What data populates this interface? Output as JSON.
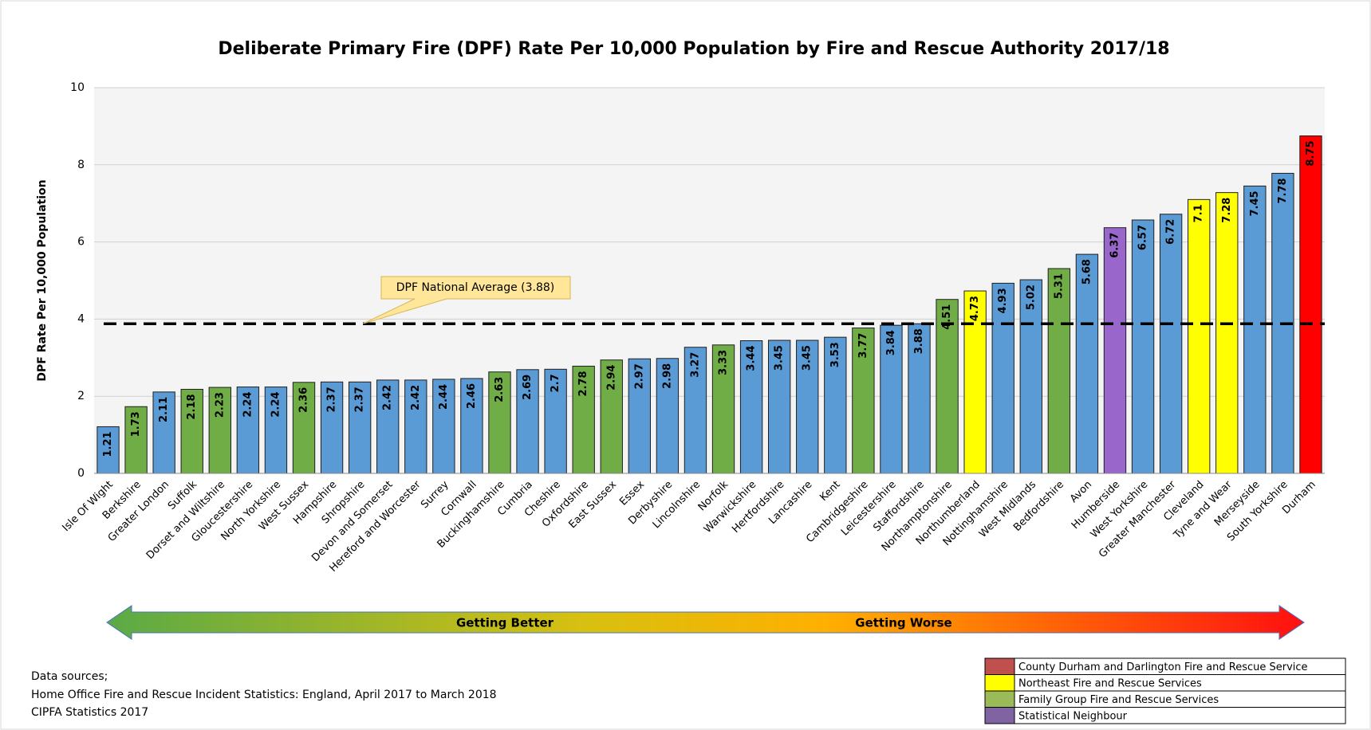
{
  "chart_data": {
    "type": "bar",
    "title": "Deliberate Primary Fire (DPF) Rate Per 10,000 Population by Fire and Rescue Authority 2017/18",
    "y_label": "DPF Rate Per 10,000 Population",
    "categories": [
      "Isle Of Wight",
      "Berkshire",
      "Greater London",
      "Suffolk",
      "Dorset and Wiltshire",
      "Gloucestershire",
      "North Yorkshire",
      "West Sussex",
      "Hampshire",
      "Shropshire",
      "Devon and Somerset",
      "Hereford and Worcester",
      "Surrey",
      "Cornwall",
      "Buckinghamshire",
      "Cumbria",
      "Cheshire",
      "Oxfordshire",
      "East Sussex",
      "Essex",
      "Derbyshire",
      "Lincolnshire",
      "Norfolk",
      "Warwickshire",
      "Hertfordshire",
      "Lancashire",
      "Kent",
      "Cambridgeshire",
      "Leicestershire",
      "Staffordshire",
      "Northamptonshire",
      "Northumberland",
      "Nottinghamshire",
      "West Midlands",
      "Bedfordshire",
      "Avon",
      "Humberside",
      "West Yorkshire",
      "Greater Manchester",
      "Cleveland",
      "Tyne and Wear",
      "Merseyside",
      "South Yorkshire",
      "Durham"
    ],
    "values": [
      1.21,
      1.73,
      2.11,
      2.18,
      2.23,
      2.24,
      2.24,
      2.36,
      2.37,
      2.37,
      2.42,
      2.42,
      2.44,
      2.46,
      2.63,
      2.69,
      2.7,
      2.78,
      2.94,
      2.97,
      2.98,
      3.27,
      3.33,
      3.44,
      3.45,
      3.45,
      3.53,
      3.77,
      3.84,
      3.88,
      4.51,
      4.73,
      4.93,
      5.02,
      5.31,
      5.68,
      6.37,
      6.57,
      6.72,
      7.1,
      7.28,
      7.45,
      7.78,
      8.75
    ],
    "colors": [
      "#5b9bd5",
      "#70ad47",
      "#5b9bd5",
      "#70ad47",
      "#70ad47",
      "#5b9bd5",
      "#5b9bd5",
      "#70ad47",
      "#5b9bd5",
      "#5b9bd5",
      "#5b9bd5",
      "#5b9bd5",
      "#5b9bd5",
      "#5b9bd5",
      "#70ad47",
      "#5b9bd5",
      "#5b9bd5",
      "#70ad47",
      "#70ad47",
      "#5b9bd5",
      "#5b9bd5",
      "#5b9bd5",
      "#70ad47",
      "#5b9bd5",
      "#5b9bd5",
      "#5b9bd5",
      "#5b9bd5",
      "#70ad47",
      "#5b9bd5",
      "#5b9bd5",
      "#70ad47",
      "#ffff00",
      "#5b9bd5",
      "#5b9bd5",
      "#70ad47",
      "#5b9bd5",
      "#9966cc",
      "#5b9bd5",
      "#5b9bd5",
      "#ffff00",
      "#ffff00",
      "#5b9bd5",
      "#5b9bd5",
      "#ff0000"
    ],
    "ylim": [
      0,
      10
    ],
    "yticks": [
      0,
      2,
      4,
      6,
      8,
      10
    ],
    "grid": true,
    "reference_line": {
      "value": 3.88,
      "label": "DPF National Average (3.88)"
    },
    "arrow_labels": [
      "Getting Better",
      "Getting Worse"
    ],
    "legend": [
      {
        "label": "County Durham and Darlington Fire and Rescue Service",
        "color": "#c0504d"
      },
      {
        "label": "Northeast Fire and Rescue Services",
        "color": "#ffff00"
      },
      {
        "label": "Family Group Fire and Rescue Services",
        "color": "#9bbb59"
      },
      {
        "label": "Statistical Neighbour",
        "color": "#8064a2"
      }
    ],
    "sources": [
      "Data sources;",
      "Home Office Fire and Rescue Incident Statistics: England, April 2017 to March 2018",
      "CIPFA Statistics 2017"
    ]
  }
}
